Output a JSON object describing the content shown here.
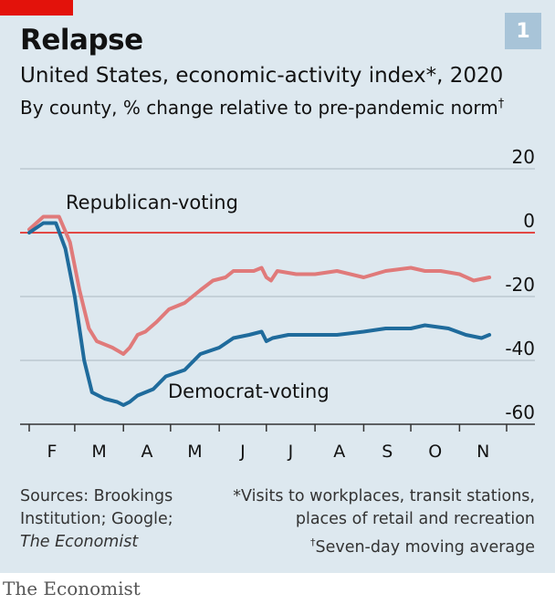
{
  "header": {
    "chart_number": "1",
    "title": "Relapse",
    "subtitle": "United States, economic-activity index*, 2020",
    "subsubtitle": "By county, % change relative to pre-pandemic norm",
    "subsubtitle_mark": "†"
  },
  "footer": {
    "source_line1": "Sources: Brookings",
    "source_line2": "Institution; Google;",
    "source_line3": "The Economist",
    "note1": "*Visits to workplaces, transit stations,",
    "note2": "places of retail and recreation",
    "note3_mark": "†",
    "note3": "Seven-day moving average",
    "brand": "The Economist"
  },
  "colors": {
    "background": "#dde8ef",
    "republican": "#e07a7a",
    "democrat": "#1f6b9c",
    "zero_line": "#e3120b",
    "grid": "#aab8c2",
    "brand_red": "#e3120b"
  },
  "chart_data": {
    "type": "line",
    "title": "United States, economic-activity index*, 2020",
    "xlabel": "",
    "ylabel": "",
    "ylim": [
      -60,
      20
    ],
    "y_ticks": [
      20,
      0,
      -20,
      -40,
      -60
    ],
    "x_tick_labels": [
      "F",
      "M",
      "A",
      "M",
      "J",
      "J",
      "A",
      "S",
      "O",
      "N"
    ],
    "grid": true,
    "series": [
      {
        "name": "Republican-voting",
        "points": [
          [
            "2020-02-01",
            1
          ],
          [
            "2020-02-10",
            5
          ],
          [
            "2020-02-20",
            5
          ],
          [
            "2020-02-27",
            -3
          ],
          [
            "2020-03-04",
            -18
          ],
          [
            "2020-03-10",
            -30
          ],
          [
            "2020-03-15",
            -34
          ],
          [
            "2020-03-25",
            -36
          ],
          [
            "2020-04-01",
            -38
          ],
          [
            "2020-04-05",
            -36
          ],
          [
            "2020-04-10",
            -32
          ],
          [
            "2020-04-15",
            -31
          ],
          [
            "2020-04-22",
            -28
          ],
          [
            "2020-04-30",
            -24
          ],
          [
            "2020-05-10",
            -22
          ],
          [
            "2020-05-20",
            -18
          ],
          [
            "2020-05-28",
            -15
          ],
          [
            "2020-06-05",
            -14
          ],
          [
            "2020-06-10",
            -12
          ],
          [
            "2020-06-17",
            -12
          ],
          [
            "2020-06-23",
            -12
          ],
          [
            "2020-06-28",
            -11
          ],
          [
            "2020-07-01",
            -14
          ],
          [
            "2020-07-04",
            -15
          ],
          [
            "2020-07-08",
            -12
          ],
          [
            "2020-07-20",
            -13
          ],
          [
            "2020-08-01",
            -13
          ],
          [
            "2020-08-15",
            -12
          ],
          [
            "2020-09-01",
            -14
          ],
          [
            "2020-09-15",
            -12
          ],
          [
            "2020-10-01",
            -11
          ],
          [
            "2020-10-10",
            -12
          ],
          [
            "2020-10-20",
            -12
          ],
          [
            "2020-11-01",
            -13
          ],
          [
            "2020-11-10",
            -15
          ],
          [
            "2020-11-20",
            -14
          ]
        ]
      },
      {
        "name": "Democrat-voting",
        "points": [
          [
            "2020-02-01",
            0
          ],
          [
            "2020-02-10",
            3
          ],
          [
            "2020-02-18",
            3
          ],
          [
            "2020-02-24",
            -5
          ],
          [
            "2020-03-01",
            -20
          ],
          [
            "2020-03-07",
            -40
          ],
          [
            "2020-03-12",
            -50
          ],
          [
            "2020-03-20",
            -52
          ],
          [
            "2020-03-28",
            -53
          ],
          [
            "2020-04-01",
            -54
          ],
          [
            "2020-04-05",
            -53
          ],
          [
            "2020-04-10",
            -51
          ],
          [
            "2020-04-20",
            -49
          ],
          [
            "2020-04-28",
            -45
          ],
          [
            "2020-05-10",
            -43
          ],
          [
            "2020-05-20",
            -38
          ],
          [
            "2020-06-01",
            -36
          ],
          [
            "2020-06-10",
            -33
          ],
          [
            "2020-06-20",
            -32
          ],
          [
            "2020-06-28",
            -31
          ],
          [
            "2020-07-01",
            -34
          ],
          [
            "2020-07-05",
            -33
          ],
          [
            "2020-07-15",
            -32
          ],
          [
            "2020-08-01",
            -32
          ],
          [
            "2020-08-15",
            -32
          ],
          [
            "2020-09-01",
            -31
          ],
          [
            "2020-09-15",
            -30
          ],
          [
            "2020-10-01",
            -30
          ],
          [
            "2020-10-10",
            -29
          ],
          [
            "2020-10-25",
            -30
          ],
          [
            "2020-11-05",
            -32
          ],
          [
            "2020-11-15",
            -33
          ],
          [
            "2020-11-20",
            -32
          ]
        ]
      }
    ]
  }
}
